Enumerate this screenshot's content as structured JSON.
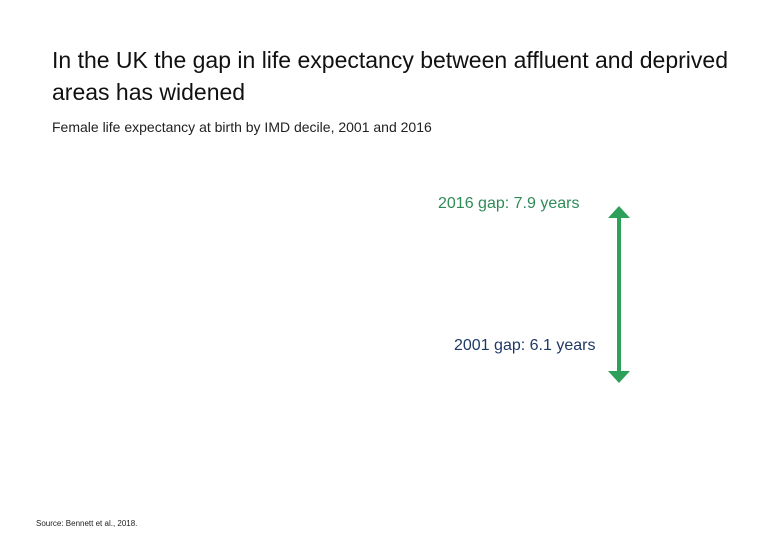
{
  "chart_data": {
    "type": "line",
    "title": "In the UK the gap in life expectancy between affluent and deprived areas has widened",
    "subtitle": "Female life expectancy at birth by IMD decile, 2001 and 2016",
    "annotations": [
      {
        "id": "gap_2016",
        "text": "2016 gap: 7.9 years",
        "value": 7.9,
        "year": 2016,
        "color": "#2e8b57"
      },
      {
        "id": "gap_2001",
        "text": "2001 gap: 6.1 years",
        "value": 6.1,
        "year": 2001,
        "color": "#1f3864"
      }
    ],
    "gap_arrow": {
      "color": "#2fa05a",
      "direction": "both"
    },
    "source": "Source: Bennett et al., 2018."
  }
}
